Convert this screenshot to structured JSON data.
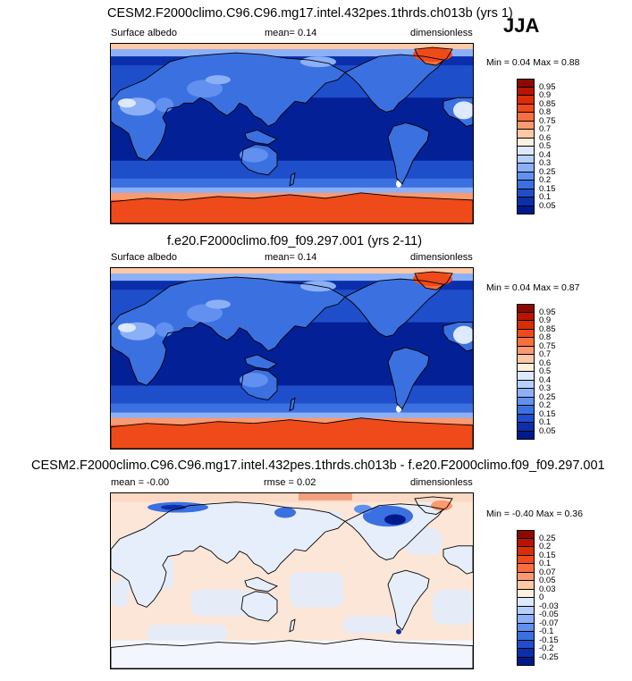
{
  "season": "JJA",
  "panels": [
    {
      "title": "CESM2.F2000climo.C96.C96.mg17.intel.432pes.1thrds.ch013b (yrs 1)",
      "left": "Surface albedo",
      "center": "mean=  0.14",
      "right": "dimensionless",
      "minmax": "Min =  0.04 Max =  0.88",
      "levels": [
        "0.95",
        "0.9",
        "0.85",
        "0.8",
        "0.75",
        "0.7",
        "0.6",
        "0.5",
        "0.4",
        "0.3",
        "0.25",
        "0.2",
        "0.15",
        "0.1",
        "0.05"
      ],
      "colors": [
        "#8c0a00",
        "#b81400",
        "#d92d05",
        "#ee4a1a",
        "#f76e3f",
        "#fb9970",
        "#fdc8a6",
        "#fff1df",
        "#dde9ff",
        "#b8cffd",
        "#8cb0f8",
        "#6190f0",
        "#3b70e0",
        "#1f4ecb",
        "#0b2fab",
        "#001a8c"
      ]
    },
    {
      "title": "f.e20.F2000climo.f09_f09.297.001 (yrs 2-11)",
      "left": "Surface albedo",
      "center": "mean=  0.14",
      "right": "dimensionless",
      "minmax": "Min =  0.04 Max =  0.87",
      "levels": [
        "0.95",
        "0.9",
        "0.85",
        "0.8",
        "0.75",
        "0.7",
        "0.6",
        "0.5",
        "0.4",
        "0.3",
        "0.25",
        "0.2",
        "0.15",
        "0.1",
        "0.05"
      ],
      "colors": [
        "#8c0a00",
        "#b81400",
        "#d92d05",
        "#ee4a1a",
        "#f76e3f",
        "#fb9970",
        "#fdc8a6",
        "#fff1df",
        "#dde9ff",
        "#b8cffd",
        "#8cb0f8",
        "#6190f0",
        "#3b70e0",
        "#1f4ecb",
        "#0b2fab",
        "#001a8c"
      ]
    },
    {
      "title": "CESM2.F2000climo.C96.C96.mg17.intel.432pes.1thrds.ch013b - f.e20.F2000climo.f09_f09.297.001",
      "left": "mean =  -0.00",
      "center": "rmse =  0.02",
      "right": "dimensionless",
      "minmax": "Min =  -0.40 Max =  0.36",
      "levels": [
        "0.25",
        "0.2",
        "0.15",
        "0.1",
        "0.07",
        "0.05",
        "0.03",
        "0",
        "-0.03",
        "-0.05",
        "-0.07",
        "-0.1",
        "-0.15",
        "-0.2",
        "-0.25"
      ],
      "colors": [
        "#8c0a00",
        "#b81400",
        "#d92d05",
        "#ee4a1a",
        "#f76e3f",
        "#fb9970",
        "#fdc8a6",
        "#fff1df",
        "#dde9ff",
        "#b8cffd",
        "#8cb0f8",
        "#6190f0",
        "#3b70e0",
        "#1f4ecb",
        "#0b2fab",
        "#001a8c"
      ]
    }
  ]
}
